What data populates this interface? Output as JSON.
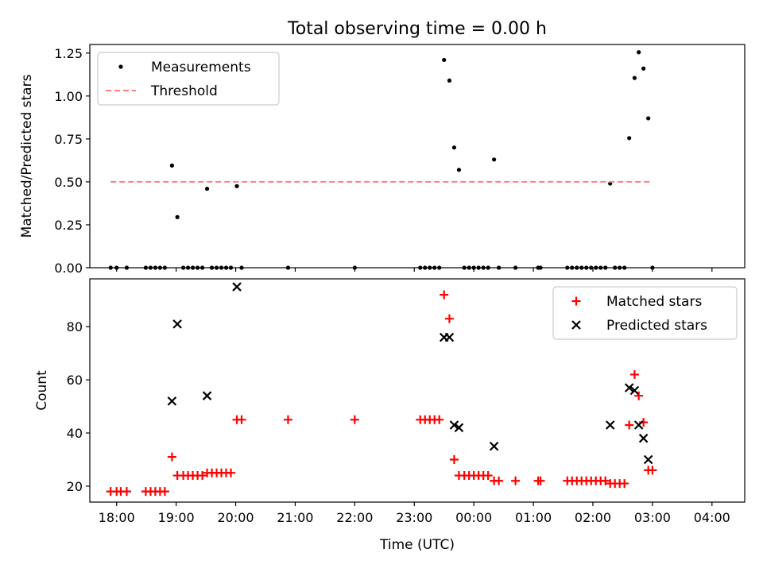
{
  "title": "Total observing time = 0.00 h",
  "chart_data": [
    {
      "type": "scatter",
      "ylabel": "Matched/Predicted stars",
      "xlabel": "",
      "xlim": [
        -0.45,
        10.55
      ],
      "ylim": [
        0,
        1.3
      ],
      "yticks": [
        0.0,
        0.25,
        0.5,
        0.75,
        1.0,
        1.25
      ],
      "ytick_labels": [
        "0.00",
        "0.25",
        "0.50",
        "0.75",
        "1.00",
        "1.25"
      ],
      "xticks": [
        0,
        1,
        2,
        3,
        4,
        5,
        6,
        7,
        8,
        9,
        10
      ],
      "xtick_labels_visible": false,
      "legend": {
        "placement": "top-left",
        "entries": [
          "Measurements",
          "Threshold"
        ]
      },
      "series": [
        {
          "name": "Measurements",
          "marker": "dot",
          "color": "#000000",
          "points": [
            [
              -0.1,
              0
            ],
            [
              0.0,
              0
            ],
            [
              0.17,
              0
            ],
            [
              0.49,
              0
            ],
            [
              0.57,
              0
            ],
            [
              0.65,
              0
            ],
            [
              0.73,
              0
            ],
            [
              0.81,
              0
            ],
            [
              0.93,
              0.595
            ],
            [
              1.02,
              0.295
            ],
            [
              1.12,
              0
            ],
            [
              1.2,
              0
            ],
            [
              1.28,
              0
            ],
            [
              1.36,
              0
            ],
            [
              1.44,
              0
            ],
            [
              1.52,
              0.46
            ],
            [
              1.6,
              0
            ],
            [
              1.68,
              0
            ],
            [
              1.76,
              0
            ],
            [
              1.84,
              0
            ],
            [
              1.92,
              0
            ],
            [
              2.02,
              0.475
            ],
            [
              2.1,
              0
            ],
            [
              2.88,
              0
            ],
            [
              4.0,
              0
            ],
            [
              5.1,
              0
            ],
            [
              5.18,
              0
            ],
            [
              5.26,
              0
            ],
            [
              5.34,
              0
            ],
            [
              5.42,
              0
            ],
            [
              5.5,
              1.21
            ],
            [
              5.59,
              1.09
            ],
            [
              5.67,
              0.7
            ],
            [
              5.75,
              0.57
            ],
            [
              5.84,
              0
            ],
            [
              5.92,
              0
            ],
            [
              6.0,
              0
            ],
            [
              6.08,
              0
            ],
            [
              6.16,
              0
            ],
            [
              6.24,
              0
            ],
            [
              6.34,
              0.63
            ],
            [
              6.42,
              0
            ],
            [
              6.7,
              0
            ],
            [
              7.08,
              0
            ],
            [
              7.12,
              0
            ],
            [
              7.57,
              0
            ],
            [
              7.65,
              0
            ],
            [
              7.73,
              0
            ],
            [
              7.81,
              0
            ],
            [
              7.89,
              0
            ],
            [
              7.97,
              0
            ],
            [
              8.05,
              0
            ],
            [
              8.13,
              0
            ],
            [
              8.21,
              0
            ],
            [
              8.29,
              0.49
            ],
            [
              8.37,
              0
            ],
            [
              8.45,
              0
            ],
            [
              8.53,
              0
            ],
            [
              8.61,
              0.755
            ],
            [
              8.7,
              1.105
            ],
            [
              8.77,
              1.255
            ],
            [
              8.85,
              1.16
            ],
            [
              8.93,
              0.87
            ],
            [
              9.0,
              0
            ]
          ]
        },
        {
          "name": "Threshold",
          "style": "dashed",
          "color": "#ff7f7f",
          "x": [
            -0.1,
            9.0
          ],
          "y": [
            0.5,
            0.5
          ]
        }
      ]
    },
    {
      "type": "scatter",
      "ylabel": "Count",
      "xlabel": "Time (UTC)",
      "xlim": [
        -0.45,
        10.55
      ],
      "ylim": [
        14,
        98
      ],
      "yticks": [
        20,
        40,
        60,
        80
      ],
      "ytick_labels": [
        "20",
        "40",
        "60",
        "80"
      ],
      "xticks": [
        0,
        1,
        2,
        3,
        4,
        5,
        6,
        7,
        8,
        9,
        10
      ],
      "xtick_labels": [
        "18:00",
        "19:00",
        "20:00",
        "21:00",
        "22:00",
        "23:00",
        "00:00",
        "01:00",
        "02:00",
        "03:00",
        "04:00"
      ],
      "legend": {
        "placement": "top-right",
        "entries": [
          "Matched stars",
          "Predicted stars"
        ]
      },
      "series": [
        {
          "name": "Matched stars",
          "marker": "plus",
          "color": "#ff0000",
          "points": [
            [
              -0.1,
              18
            ],
            [
              0.0,
              18
            ],
            [
              0.07,
              18
            ],
            [
              0.17,
              18
            ],
            [
              0.49,
              18
            ],
            [
              0.57,
              18
            ],
            [
              0.65,
              18
            ],
            [
              0.73,
              18
            ],
            [
              0.81,
              18
            ],
            [
              0.93,
              31
            ],
            [
              1.02,
              24
            ],
            [
              1.12,
              24
            ],
            [
              1.2,
              24
            ],
            [
              1.28,
              24
            ],
            [
              1.36,
              24
            ],
            [
              1.44,
              24
            ],
            [
              1.52,
              25
            ],
            [
              1.6,
              25
            ],
            [
              1.68,
              25
            ],
            [
              1.76,
              25
            ],
            [
              1.84,
              25
            ],
            [
              1.92,
              25
            ],
            [
              2.02,
              45
            ],
            [
              2.1,
              45
            ],
            [
              2.88,
              45
            ],
            [
              4.0,
              45
            ],
            [
              5.1,
              45
            ],
            [
              5.18,
              45
            ],
            [
              5.26,
              45
            ],
            [
              5.34,
              45
            ],
            [
              5.42,
              45
            ],
            [
              5.5,
              92
            ],
            [
              5.59,
              83
            ],
            [
              5.67,
              30
            ],
            [
              5.75,
              24
            ],
            [
              5.84,
              24
            ],
            [
              5.92,
              24
            ],
            [
              6.0,
              24
            ],
            [
              6.08,
              24
            ],
            [
              6.16,
              24
            ],
            [
              6.24,
              24
            ],
            [
              6.34,
              22
            ],
            [
              6.42,
              22
            ],
            [
              6.7,
              22
            ],
            [
              7.08,
              22
            ],
            [
              7.12,
              22
            ],
            [
              7.57,
              22
            ],
            [
              7.65,
              22
            ],
            [
              7.73,
              22
            ],
            [
              7.81,
              22
            ],
            [
              7.89,
              22
            ],
            [
              7.97,
              22
            ],
            [
              8.05,
              22
            ],
            [
              8.13,
              22
            ],
            [
              8.21,
              22
            ],
            [
              8.29,
              21
            ],
            [
              8.37,
              21
            ],
            [
              8.45,
              21
            ],
            [
              8.53,
              21
            ],
            [
              8.61,
              43
            ],
            [
              8.7,
              62
            ],
            [
              8.77,
              54
            ],
            [
              8.85,
              44
            ],
            [
              8.93,
              26
            ],
            [
              9.0,
              26
            ]
          ]
        },
        {
          "name": "Predicted stars",
          "marker": "x",
          "color": "#000000",
          "points": [
            [
              0.93,
              52
            ],
            [
              1.02,
              81
            ],
            [
              1.52,
              54
            ],
            [
              2.02,
              95
            ],
            [
              5.5,
              76
            ],
            [
              5.59,
              76
            ],
            [
              5.67,
              43
            ],
            [
              5.75,
              42
            ],
            [
              6.34,
              35
            ],
            [
              8.29,
              43
            ],
            [
              8.61,
              57
            ],
            [
              8.7,
              56
            ],
            [
              8.77,
              43
            ],
            [
              8.85,
              38
            ],
            [
              8.93,
              30
            ]
          ]
        }
      ]
    }
  ]
}
